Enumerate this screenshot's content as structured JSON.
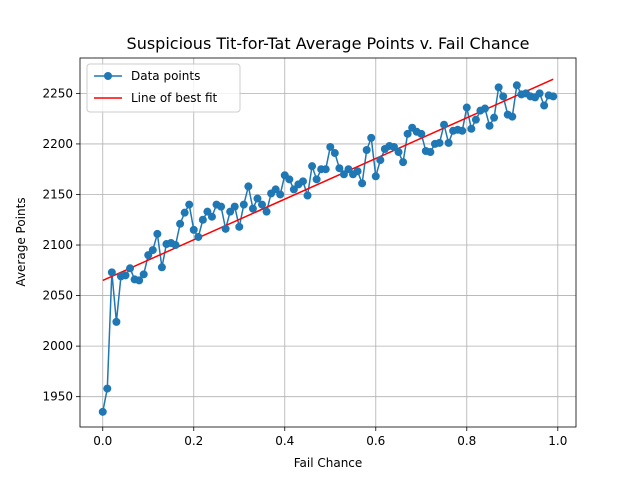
{
  "chart_data": {
    "type": "line",
    "title": "Suspicious Tit-for-Tat Average Points v. Fail Chance",
    "xlabel": "Fail Chance",
    "ylabel": "Average Points",
    "xlim": [
      -0.05,
      1.04
    ],
    "ylim": [
      1920,
      2285
    ],
    "xticks": [
      0.0,
      0.2,
      0.4,
      0.6,
      0.8,
      1.0
    ],
    "xtick_labels": [
      "0.0",
      "0.2",
      "0.4",
      "0.6",
      "0.8",
      "1.0"
    ],
    "yticks": [
      1950,
      2000,
      2050,
      2100,
      2150,
      2200,
      2250
    ],
    "ytick_labels": [
      "1950",
      "2000",
      "2050",
      "2100",
      "2150",
      "2200",
      "2250"
    ],
    "grid": true,
    "legend_position": "top-left",
    "series": [
      {
        "name": "Data points",
        "color": "#1f77b4",
        "marker": "circle",
        "x": [
          0.0,
          0.01,
          0.02,
          0.03,
          0.04,
          0.05,
          0.06,
          0.07,
          0.08,
          0.09,
          0.1,
          0.11,
          0.12,
          0.13,
          0.14,
          0.15,
          0.16,
          0.17,
          0.18,
          0.19,
          0.2,
          0.21,
          0.22,
          0.23,
          0.24,
          0.25,
          0.26,
          0.27,
          0.28,
          0.29,
          0.3,
          0.31,
          0.32,
          0.33,
          0.34,
          0.35,
          0.36,
          0.37,
          0.38,
          0.39,
          0.4,
          0.41,
          0.42,
          0.43,
          0.44,
          0.45,
          0.46,
          0.47,
          0.48,
          0.49,
          0.5,
          0.51,
          0.52,
          0.53,
          0.54,
          0.55,
          0.56,
          0.57,
          0.58,
          0.59,
          0.6,
          0.61,
          0.62,
          0.63,
          0.64,
          0.65,
          0.66,
          0.67,
          0.68,
          0.69,
          0.7,
          0.71,
          0.72,
          0.73,
          0.74,
          0.75,
          0.76,
          0.77,
          0.78,
          0.79,
          0.8,
          0.81,
          0.82,
          0.83,
          0.84,
          0.85,
          0.86,
          0.87,
          0.88,
          0.89,
          0.9,
          0.91,
          0.92,
          0.93,
          0.94,
          0.95,
          0.96,
          0.97,
          0.98,
          0.99
        ],
        "y": [
          1935,
          1958,
          2073,
          2024,
          2069,
          2070,
          2077,
          2066,
          2065,
          2071,
          2090,
          2095,
          2111,
          2078,
          2101,
          2102,
          2100,
          2121,
          2132,
          2140,
          2115,
          2108,
          2125,
          2133,
          2128,
          2140,
          2138,
          2116,
          2133,
          2138,
          2118,
          2140,
          2158,
          2136,
          2146,
          2140,
          2133,
          2151,
          2155,
          2150,
          2169,
          2165,
          2155,
          2160,
          2163,
          2149,
          2178,
          2165,
          2175,
          2175,
          2197,
          2191,
          2176,
          2170,
          2175,
          2170,
          2173,
          2161,
          2194,
          2206,
          2168,
          2184,
          2195,
          2198,
          2197,
          2192,
          2182,
          2210,
          2216,
          2212,
          2210,
          2193,
          2192,
          2200,
          2201,
          2219,
          2201,
          2213,
          2214,
          2213,
          2236,
          2215,
          2224,
          2233,
          2235,
          2218,
          2226,
          2256,
          2247,
          2229,
          2227,
          2258,
          2249,
          2250,
          2247,
          2246,
          2250,
          2238,
          2248,
          2247
        ]
      },
      {
        "name": "Line of best fit",
        "color": "#ff0000",
        "marker": "none",
        "x": [
          0.0,
          0.99
        ],
        "y": [
          2065,
          2264
        ]
      }
    ]
  }
}
